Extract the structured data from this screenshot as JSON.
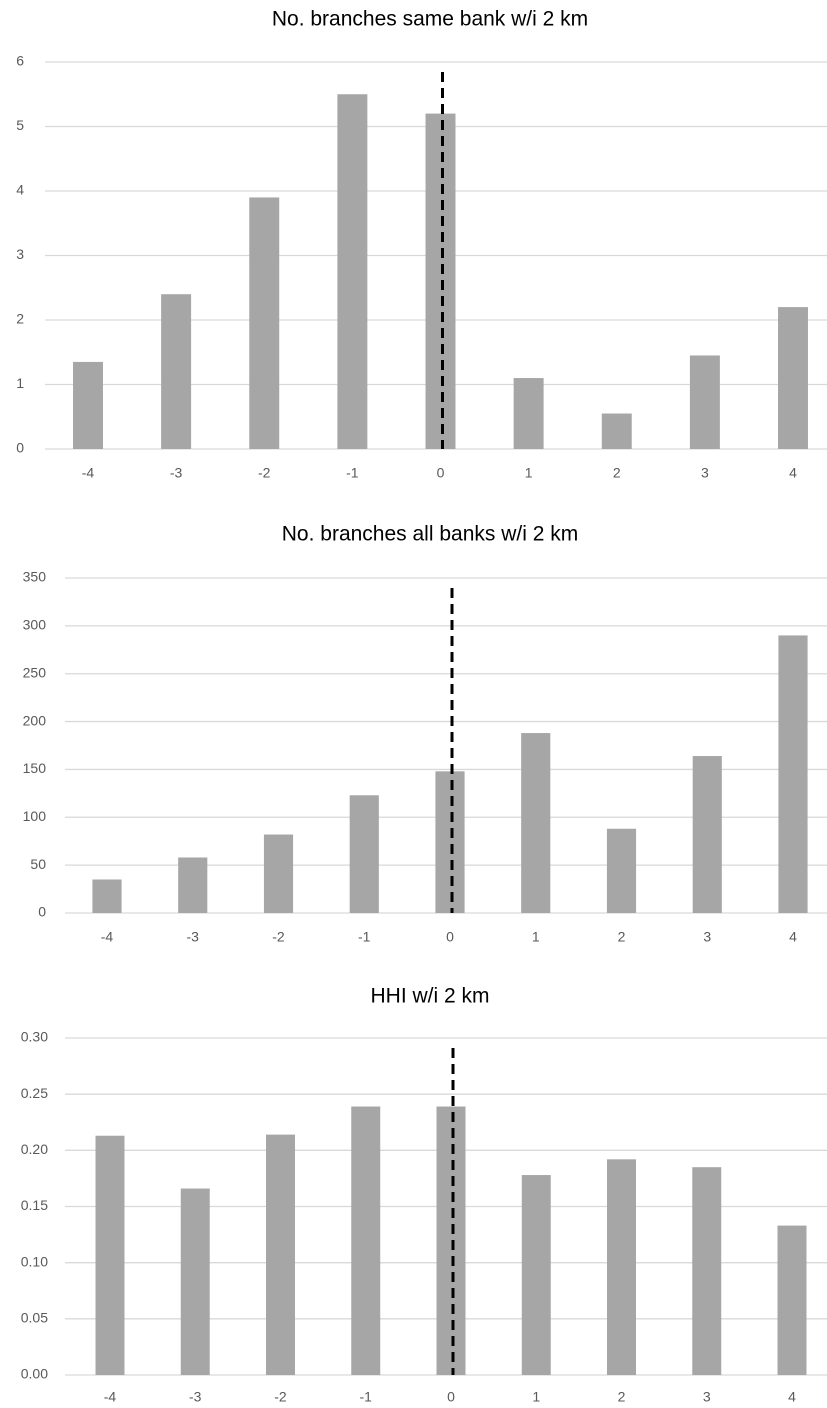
{
  "chart_data": [
    {
      "type": "bar",
      "title": "No. branches same bank w/i 2 km",
      "categories": [
        "-4",
        "-3",
        "-2",
        "-1",
        "0",
        "1",
        "2",
        "3",
        "4"
      ],
      "values": [
        1.35,
        2.4,
        3.9,
        5.5,
        5.2,
        1.1,
        0.55,
        1.45,
        2.2
      ],
      "color": "#a6a6a6",
      "ylim": [
        0,
        6
      ],
      "yticks": [
        0,
        1,
        2,
        3,
        4,
        5,
        6
      ],
      "grid": true,
      "reference_line": {
        "x": "0",
        "style": "dashed"
      }
    },
    {
      "type": "bar",
      "title": "No. branches all banks w/i 2 km",
      "categories": [
        "-4",
        "-3",
        "-2",
        "-1",
        "0",
        "1",
        "2",
        "3",
        "4"
      ],
      "values": [
        35,
        58,
        82,
        123,
        148,
        188,
        88,
        164,
        290
      ],
      "color": "#a6a6a6",
      "ylim": [
        0,
        350
      ],
      "yticks": [
        0,
        50,
        100,
        150,
        200,
        250,
        300,
        350
      ],
      "grid": true,
      "reference_line": {
        "x": "0",
        "style": "dashed"
      }
    },
    {
      "type": "bar",
      "title": "HHI w/i 2 km",
      "categories": [
        "-4",
        "-3",
        "-2",
        "-1",
        "0",
        "1",
        "2",
        "3",
        "4"
      ],
      "values": [
        0.213,
        0.166,
        0.214,
        0.239,
        0.239,
        0.178,
        0.192,
        0.185,
        0.133
      ],
      "color": "#a6a6a6",
      "ylim": [
        0,
        0.3
      ],
      "yticks": [
        {
          "value": 0,
          "label": "0.00"
        },
        {
          "value": 0.05,
          "label": "0.05"
        },
        {
          "value": 0.1,
          "label": "0.10"
        },
        {
          "value": 0.15,
          "label": "0.15"
        },
        {
          "value": 0.2,
          "label": "0.20"
        },
        {
          "value": 0.25,
          "label": "0.25"
        },
        {
          "value": 0.3,
          "label": "0.30"
        }
      ],
      "grid": true,
      "reference_line": {
        "x": "0",
        "style": "dashed"
      }
    }
  ]
}
